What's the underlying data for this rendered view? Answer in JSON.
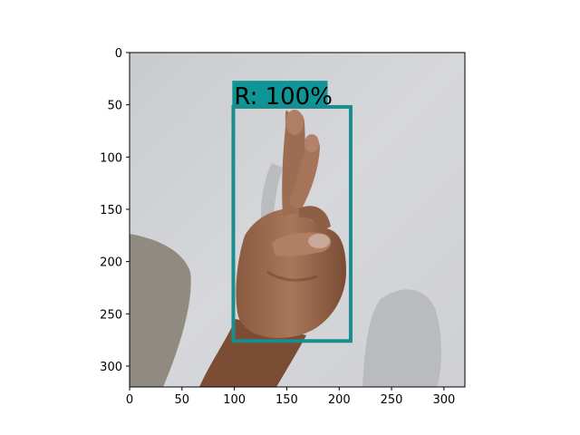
{
  "chart_data": {
    "type": "image-with-detection",
    "title": "",
    "xlabel": "",
    "ylabel": "",
    "xlim": [
      0,
      320
    ],
    "ylim": [
      320,
      0
    ],
    "xticks": [
      0,
      50,
      100,
      150,
      200,
      250,
      300
    ],
    "yticks": [
      0,
      50,
      100,
      150,
      200,
      250,
      300
    ],
    "detection": {
      "label": "R: 100%",
      "box_data": {
        "x0": 99,
        "y0": 52,
        "x1": 211,
        "y1": 276
      },
      "label_bg_data": {
        "x0": 98,
        "y0": 27,
        "x1": 189,
        "y1": 52
      }
    },
    "colors": {
      "box": "#1a8e8e",
      "label_bg": "#0f9595",
      "wall": "#d3d4d8",
      "skin": "#a06a4c",
      "skin_dark": "#6e4531",
      "shadow": "#7d7468"
    }
  }
}
